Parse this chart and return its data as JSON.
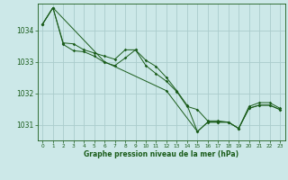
{
  "background_color": "#cce8e8",
  "plot_bg_color": "#cce8e8",
  "grid_color": "#aacccc",
  "line_color": "#1a5c1a",
  "ylim": [
    1030.5,
    1034.85
  ],
  "xlim": [
    -0.5,
    23.5
  ],
  "yticks": [
    1031,
    1032,
    1033,
    1034
  ],
  "xticks": [
    0,
    1,
    2,
    3,
    4,
    5,
    6,
    7,
    8,
    9,
    10,
    11,
    12,
    13,
    14,
    15,
    16,
    17,
    18,
    19,
    20,
    21,
    22,
    23
  ],
  "xlabel": "Graphe pression niveau de la mer (hPa)",
  "series1_x": [
    0,
    1,
    2,
    3,
    4,
    5,
    6,
    7,
    8,
    9,
    10,
    11,
    12,
    13,
    14,
    15,
    16,
    17,
    18,
    19,
    20,
    21,
    22,
    23
  ],
  "series1_y": [
    1034.2,
    1034.72,
    1033.6,
    1033.57,
    1033.38,
    1033.28,
    1033.18,
    1033.08,
    1033.38,
    1033.38,
    1033.05,
    1032.85,
    1032.5,
    1032.08,
    1031.62,
    1030.78,
    1031.08,
    1031.08,
    1031.08,
    1030.88,
    1031.58,
    1031.7,
    1031.7,
    1031.52
  ],
  "series2_x": [
    0,
    1,
    2,
    3,
    4,
    5,
    6,
    7,
    8,
    9,
    10,
    11,
    12,
    13,
    14,
    15,
    16,
    17,
    18,
    19,
    20,
    21,
    22,
    23
  ],
  "series2_y": [
    1034.2,
    1034.72,
    1033.55,
    1033.35,
    1033.32,
    1033.18,
    1032.98,
    1032.88,
    1033.12,
    1033.38,
    1032.88,
    1032.62,
    1032.38,
    1032.05,
    1031.58,
    1031.48,
    1031.12,
    1031.12,
    1031.08,
    1030.88,
    1031.52,
    1031.62,
    1031.62,
    1031.48
  ],
  "series3_x": [
    0,
    1,
    6,
    12,
    15,
    16,
    17,
    18,
    19,
    20,
    21,
    22,
    23
  ],
  "series3_y": [
    1034.2,
    1034.72,
    1033.0,
    1032.08,
    1030.78,
    1031.08,
    1031.08,
    1031.08,
    1030.88,
    1031.52,
    1031.62,
    1031.62,
    1031.48
  ]
}
